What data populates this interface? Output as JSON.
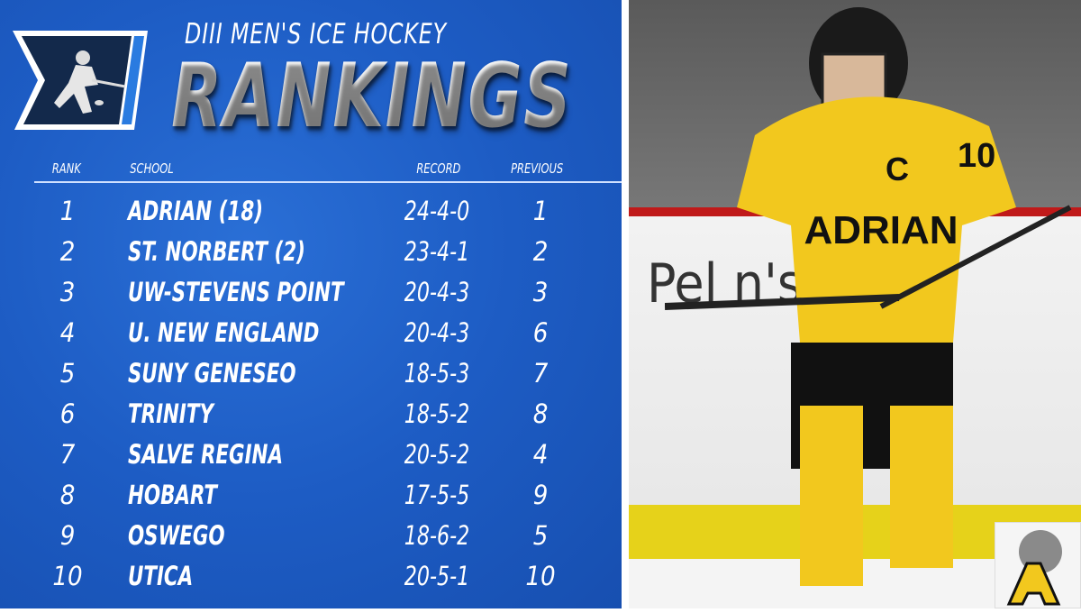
{
  "header": {
    "subtitle": "DIII MEN'S ICE HOCKEY",
    "title": "RANKINGS"
  },
  "columns": {
    "rank": "RANK",
    "school": "SCHOOL",
    "record": "RECORD",
    "previous": "PREVIOUS"
  },
  "rows": [
    {
      "rank": "1",
      "school": "ADRIAN (18)",
      "record": "24-4-0",
      "previous": "1"
    },
    {
      "rank": "2",
      "school": "ST. NORBERT (2)",
      "record": "23-4-1",
      "previous": "2"
    },
    {
      "rank": "3",
      "school": "UW-STEVENS POINT",
      "record": "20-4-3",
      "previous": "3"
    },
    {
      "rank": "4",
      "school": "U. NEW ENGLAND",
      "record": "20-4-3",
      "previous": "6"
    },
    {
      "rank": "5",
      "school": "SUNY GENESEO",
      "record": "18-5-3",
      "previous": "7"
    },
    {
      "rank": "6",
      "school": "TRINITY",
      "record": "18-5-2",
      "previous": "8"
    },
    {
      "rank": "7",
      "school": "SALVE REGINA",
      "record": "20-5-2",
      "previous": "4"
    },
    {
      "rank": "8",
      "school": "HOBART",
      "record": "17-5-5",
      "previous": "9"
    },
    {
      "rank": "9",
      "school": "OSWEGO",
      "record": "18-6-2",
      "previous": "5"
    },
    {
      "rank": "10",
      "school": "UTICA",
      "record": "20-5-1",
      "previous": "10"
    }
  ],
  "photo": {
    "jersey_text": "ADRIAN",
    "captain_mark": "C",
    "number": "10"
  },
  "colors": {
    "background_blue": "#1d5cc4",
    "logo_navy": "#13294b",
    "jersey_yellow": "#f2c81e"
  }
}
